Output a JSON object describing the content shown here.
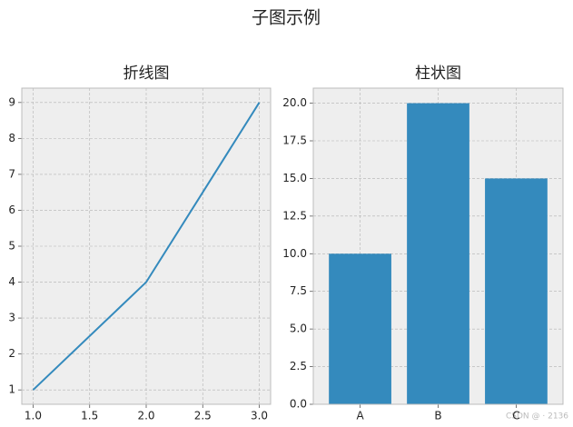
{
  "title": "子图示例",
  "watermark": "CSDN @ · 2136",
  "chart_data": [
    {
      "type": "line",
      "title": "折线图",
      "x": [
        1,
        2,
        3
      ],
      "series": [
        {
          "color": "#348abd",
          "values": [
            1,
            4,
            9
          ]
        }
      ],
      "xlim": [
        0.9,
        3.1
      ],
      "xticks": [
        {
          "value": 1,
          "label": "1.0"
        },
        1.5,
        {
          "value": 2,
          "label": "2.0"
        },
        2.5,
        {
          "value": 3,
          "label": "3.0"
        }
      ],
      "ylim": [
        0.6,
        9.4
      ],
      "yticks": [
        1,
        2,
        3,
        4,
        5,
        6,
        7,
        8,
        9
      ],
      "grid": true
    },
    {
      "type": "bar",
      "title": "柱状图",
      "categories": [
        "A",
        "B",
        "C"
      ],
      "values": [
        10,
        20,
        15
      ],
      "color": "#348abd",
      "ylim": [
        0,
        21
      ],
      "yticks": [
        {
          "value": 0,
          "label": "0.0"
        },
        2.5,
        {
          "value": 5,
          "label": "5.0"
        },
        7.5,
        {
          "value": 10,
          "label": "10.0"
        },
        12.5,
        {
          "value": 15,
          "label": "15.0"
        },
        17.5,
        {
          "value": 20,
          "label": "20.0"
        }
      ],
      "grid": true
    }
  ]
}
